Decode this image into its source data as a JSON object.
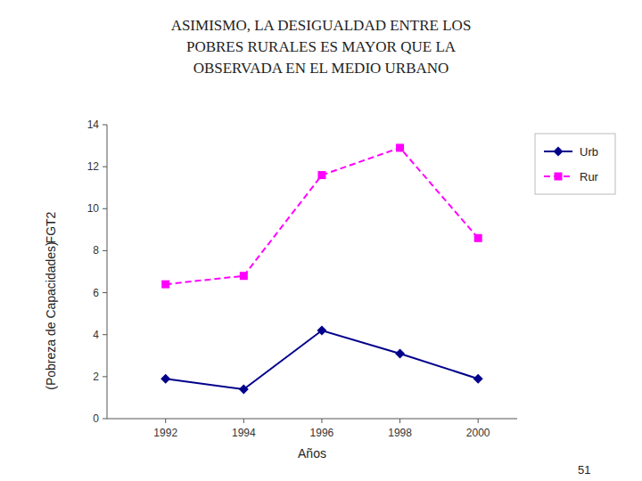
{
  "chart_data": {
    "type": "line",
    "title": "ASIMISMO, LA DESIGUALDAD ENTRE LOS\nPOBRES RURALES ES MAYOR QUE LA\nOBSERVADA EN EL MEDIO URBANO",
    "xlabel": "Años",
    "ylabel": [
      "FGT2",
      "(Pobreza de Capacidades)"
    ],
    "annotations": [
      "51"
    ],
    "x": [
      1992,
      1994,
      1996,
      1998,
      2000
    ],
    "series": [
      {
        "name": "Urb",
        "color": "#00008B",
        "marker": "diamond",
        "line_style": "solid",
        "values": [
          1.9,
          1.4,
          4.2,
          3.1,
          1.9
        ]
      },
      {
        "name": "Rur",
        "color": "#FF00FF",
        "marker": "square",
        "line_style": "dashed",
        "values": [
          6.4,
          6.8,
          11.6,
          12.9,
          8.6
        ]
      }
    ],
    "xlim": [
      1990.5,
      2001
    ],
    "xticks": [
      1992,
      1994,
      1996,
      1998,
      2000
    ],
    "ylim": [
      0,
      14
    ],
    "yticks": [
      0,
      2,
      4,
      6,
      8,
      10,
      12,
      14
    ],
    "grid": false,
    "legend": "upper right"
  }
}
